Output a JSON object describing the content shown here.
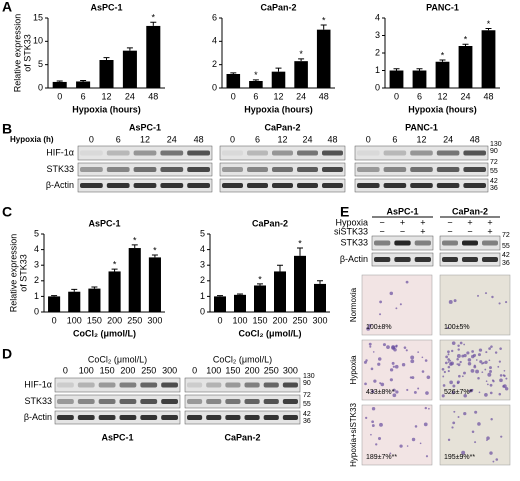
{
  "figure": {
    "panel_labels": [
      "A",
      "B",
      "C",
      "D",
      "E"
    ]
  },
  "chart_data": [
    {
      "type": "bar",
      "title": "AsPC-1",
      "categories": [
        "0",
        "6",
        "12",
        "24",
        "48"
      ],
      "values": [
        1.3,
        1.4,
        6.0,
        8.0,
        13.3
      ],
      "errors": [
        0.2,
        0.2,
        0.5,
        0.6,
        0.8
      ],
      "significance": [
        null,
        null,
        null,
        null,
        "*"
      ],
      "xlabel": "Hypoxia (hours)",
      "ylabel": [
        "Relative expression",
        "of STK33"
      ],
      "ylim": [
        0,
        15
      ],
      "yticks": [
        0,
        5,
        10,
        15
      ],
      "color": "#000000"
    },
    {
      "type": "bar",
      "title": "CaPan-2",
      "categories": [
        "0",
        "6",
        "12",
        "24",
        "48"
      ],
      "values": [
        1.2,
        0.6,
        1.4,
        2.3,
        5.0
      ],
      "errors": [
        0.1,
        0.1,
        0.3,
        0.2,
        0.4
      ],
      "significance": [
        null,
        "*",
        null,
        "*",
        "*"
      ],
      "xlabel": "Hypoxia (hours)",
      "ylim": [
        0,
        6
      ],
      "yticks": [
        0,
        2,
        4,
        6
      ],
      "color": "#000000"
    },
    {
      "type": "bar",
      "title": "PANC-1",
      "categories": [
        "0",
        "6",
        "12",
        "24",
        "48"
      ],
      "values": [
        1.0,
        1.0,
        1.5,
        2.4,
        3.3
      ],
      "errors": [
        0.1,
        0.1,
        0.1,
        0.1,
        0.1
      ],
      "significance": [
        null,
        null,
        "*",
        "*",
        "*"
      ],
      "xlabel": "Hypoxia (hours)",
      "ylim": [
        0,
        4
      ],
      "yticks": [
        0,
        1,
        2,
        3,
        4
      ],
      "color": "#000000"
    },
    {
      "type": "bar",
      "title": "AsPC-1",
      "categories": [
        "0",
        "100",
        "150",
        "200",
        "250",
        "300"
      ],
      "values": [
        1.0,
        1.3,
        1.5,
        2.6,
        4.1,
        3.5
      ],
      "errors": [
        0.05,
        0.15,
        0.1,
        0.15,
        0.2,
        0.15
      ],
      "significance": [
        null,
        null,
        null,
        "*",
        "*",
        "*"
      ],
      "xlabel": "CoCl₂ (μmol/L)",
      "ylabel": [
        "Relative expression",
        "of STK33"
      ],
      "ylim": [
        0,
        5
      ],
      "yticks": [
        0,
        1,
        2,
        3,
        4,
        5
      ],
      "color": "#000000"
    },
    {
      "type": "bar",
      "title": "CaPan-2",
      "categories": [
        "0",
        "100",
        "150",
        "200",
        "250",
        "300"
      ],
      "values": [
        1.0,
        1.1,
        1.7,
        2.6,
        3.6,
        1.8
      ],
      "errors": [
        0.05,
        0.05,
        0.1,
        0.4,
        0.5,
        0.2
      ],
      "significance": [
        null,
        null,
        "*",
        null,
        "*",
        null
      ],
      "xlabel": "CoCl₂ (μmol/L)",
      "ylim": [
        0,
        5
      ],
      "yticks": [
        0,
        1,
        2,
        3,
        4,
        5
      ],
      "color": "#000000"
    }
  ],
  "blot_B": {
    "time_label": "Hypoxia (h)",
    "lanes": [
      "0",
      "6",
      "12",
      "24",
      "48"
    ],
    "cells": [
      "AsPC-1",
      "CaPan-2",
      "PANC-1"
    ],
    "rows": [
      "HIF-1α",
      "STK33",
      "β-Actin"
    ],
    "markers": [
      "130",
      "90",
      "72",
      "55",
      "42",
      "36"
    ]
  },
  "blot_D": {
    "header": "CoCl₂ (μmol/L)",
    "lanes": [
      "0",
      "100",
      "150",
      "200",
      "250",
      "300"
    ],
    "cells": [
      "AsPC-1",
      "CaPan-2"
    ],
    "rows": [
      "HIF-1α",
      "STK33",
      "β-Actin"
    ],
    "markers": [
      "130",
      "90",
      "72",
      "55",
      "42",
      "36"
    ]
  },
  "panel_E": {
    "cells": [
      "AsPC-1",
      "CaPan-2"
    ],
    "conditions": [
      {
        "label": "Hypoxia",
        "signs": [
          "−",
          "+",
          "+",
          "−",
          "+",
          "+"
        ]
      },
      {
        "label": "siSTK33",
        "signs": [
          "−",
          "−",
          "+",
          "−",
          "−",
          "+"
        ]
      }
    ],
    "rows": [
      "STK33",
      "β-Actin"
    ],
    "markers": [
      "72",
      "55",
      "42",
      "36"
    ],
    "image_rows": [
      "Normoxia",
      "Hypoxia",
      "Hypoxia+siSTK33"
    ],
    "percentages": [
      [
        "100±8%",
        "100±5%"
      ],
      [
        "433±8%*",
        "526±7%*"
      ],
      [
        "189±7%**",
        "195±9%**"
      ]
    ]
  }
}
